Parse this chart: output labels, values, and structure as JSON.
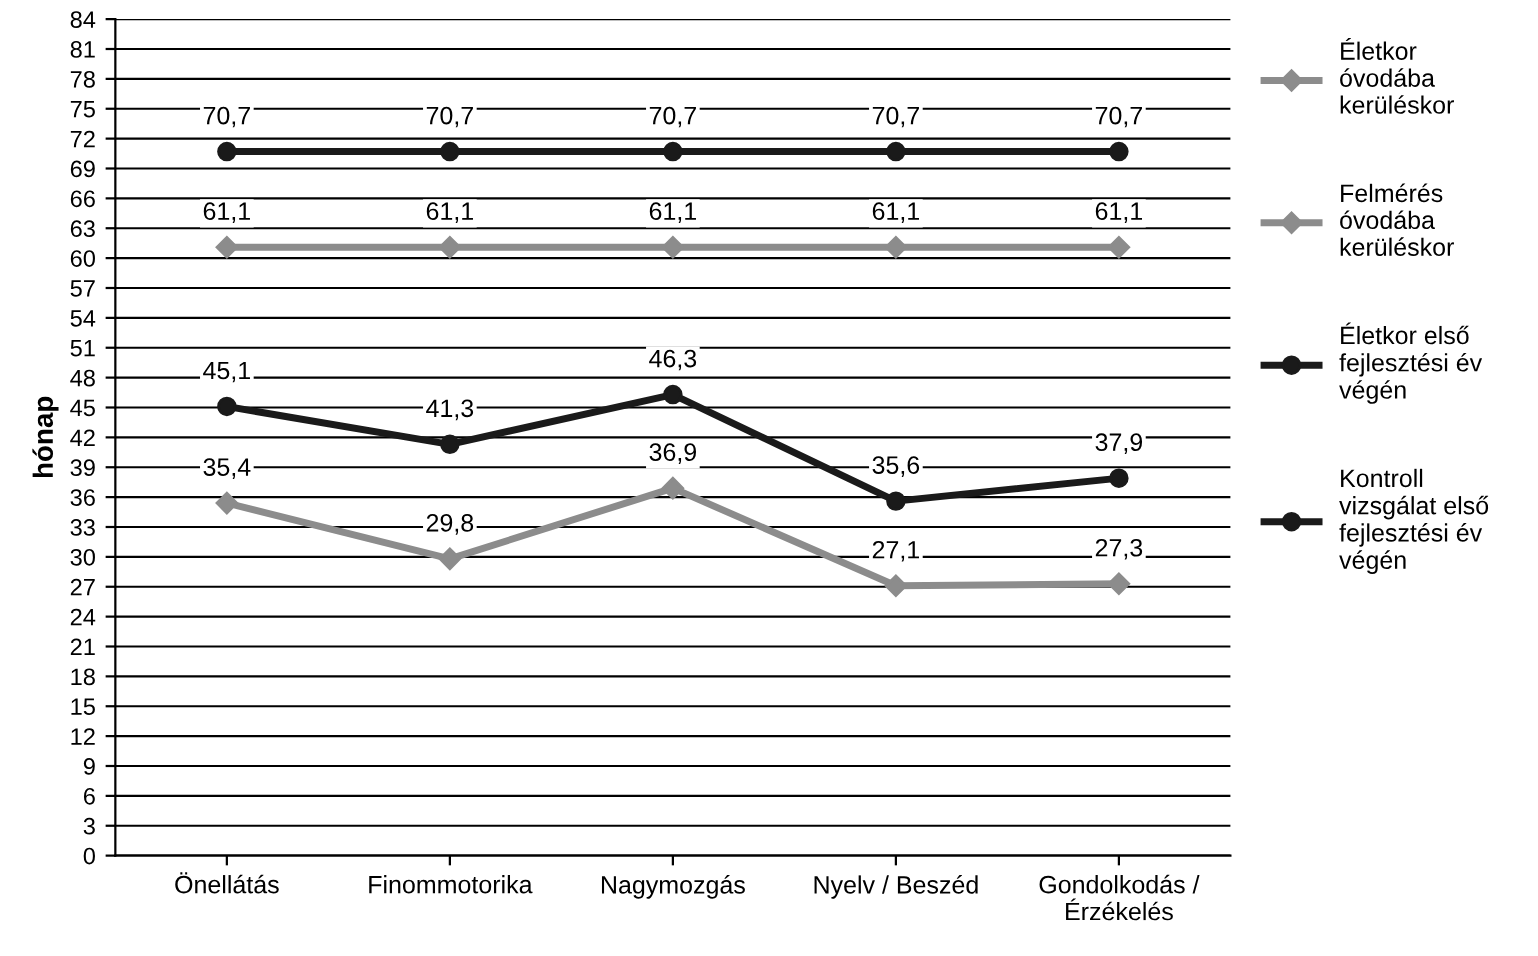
{
  "chart_data": {
    "type": "line",
    "ylabel": "hónap",
    "categories": [
      "Önellátás",
      "Finommotorika",
      "Nagymozgás",
      "Nyelv / Beszéd",
      "Gondolkodás / Érzékelés"
    ],
    "series": [
      {
        "name": "Életkor óvodába kerüléskor",
        "color": "#8c8c8c",
        "marker": "diamond",
        "values": [
          61.1,
          61.1,
          61.1,
          61.1,
          61.1
        ],
        "value_labels": [
          "61,1",
          "61,1",
          "61,1",
          "61,1",
          "61,1"
        ]
      },
      {
        "name": "Felmérés óvodába kerüléskor",
        "color": "#8c8c8c",
        "marker": "diamond",
        "values": [
          35.4,
          29.8,
          36.9,
          27.1,
          27.3
        ],
        "value_labels": [
          "35,4",
          "29,8",
          "36,9",
          "27,1",
          "27,3"
        ]
      },
      {
        "name": "Életkor első fejlesztési év végén",
        "color": "#1a1a1a",
        "marker": "circle",
        "values": [
          70.7,
          70.7,
          70.7,
          70.7,
          70.7
        ],
        "value_labels": [
          "70,7",
          "70,7",
          "70,7",
          "70,7",
          "70,7"
        ]
      },
      {
        "name": "Kontroll vizsgálat első fejlesztési év végén",
        "color": "#1a1a1a",
        "marker": "circle",
        "values": [
          45.1,
          41.3,
          46.3,
          35.6,
          37.9
        ],
        "value_labels": [
          "45,1",
          "41,3",
          "46,3",
          "35,6",
          "37,9"
        ]
      }
    ],
    "ylim": [
      0,
      84
    ],
    "yticks": [
      0,
      3,
      6,
      9,
      12,
      15,
      18,
      21,
      24,
      27,
      30,
      33,
      36,
      39,
      42,
      45,
      48,
      51,
      54,
      57,
      60,
      63,
      66,
      69,
      72,
      75,
      78,
      81,
      84
    ],
    "grid": "y",
    "legend": "right",
    "line_style": "solid"
  }
}
